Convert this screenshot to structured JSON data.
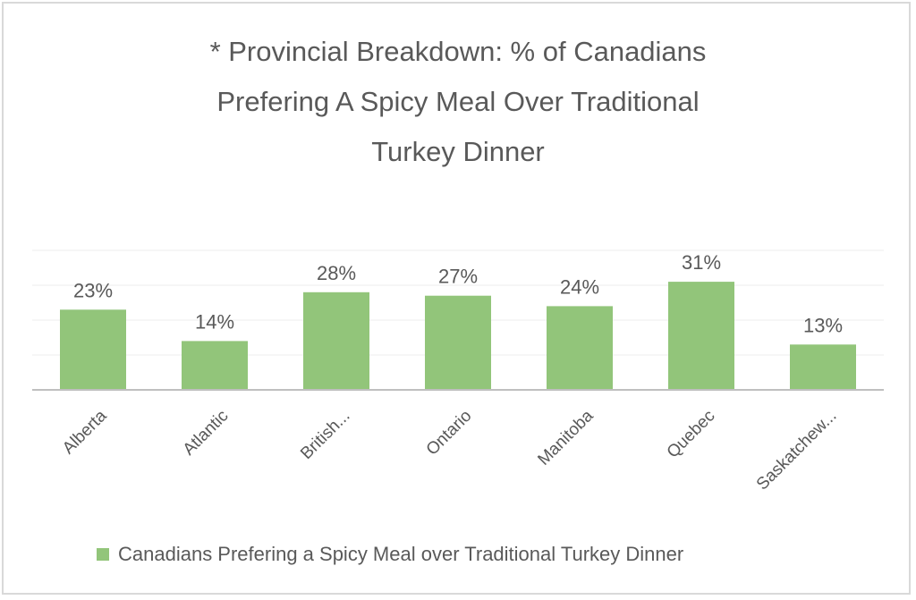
{
  "chart_data": {
    "type": "bar",
    "title_lines": [
      "* Provincial Breakdown: % of Canadians",
      "Prefering A Spicy Meal Over Traditional",
      "Turkey Dinner"
    ],
    "categories": [
      "Alberta",
      "Atlantic",
      "British...",
      "Ontario",
      "Manitoba",
      "Quebec",
      "Saskatchew..."
    ],
    "series": [
      {
        "name": "Canadians Prefering a Spicy Meal over Traditional Turkey Dinner",
        "values": [
          23,
          14,
          28,
          27,
          24,
          31,
          13
        ],
        "data_labels": [
          "23%",
          "14%",
          "28%",
          "27%",
          "24%",
          "31%",
          "13%"
        ],
        "color": "#92c57a"
      }
    ],
    "ylim": [
      0,
      40
    ],
    "grid": true,
    "legend_position": "bottom",
    "colors": {
      "bar": "#92c57a",
      "gridline": "#eeeeee",
      "axis": "#bfbfbf",
      "text": "#595959"
    }
  }
}
